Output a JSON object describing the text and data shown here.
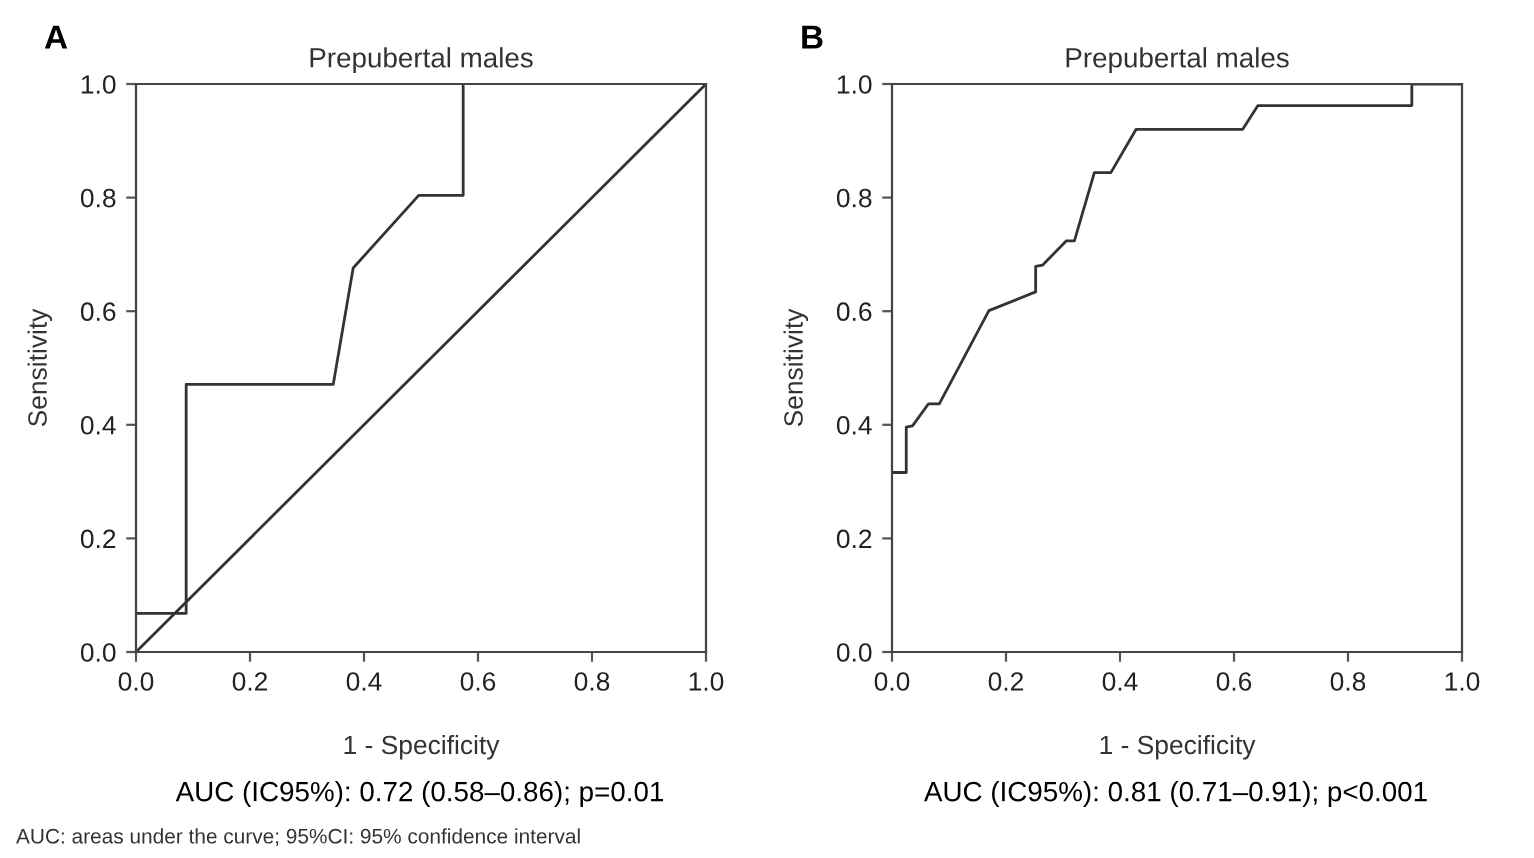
{
  "chart_data": [
    {
      "type": "line",
      "title": "Prepubertal males",
      "xlabel": "1 - Specificity",
      "ylabel": "Sensitivity",
      "annotations": [
        "A",
        "AUC (IC95%): 0.72 (0.58–0.86); p=0.01",
        "AUC: areas under the curve; 95%CI: 95% confidence interval"
      ],
      "series": [
        {
          "color": "#333333",
          "x": [
            0,
            0.088,
            0.088,
            0.346,
            0.381,
            0.496,
            0.574,
            0.574
          ],
          "values": [
            0.068,
            0.068,
            0.471,
            0.471,
            0.676,
            0.804,
            0.804,
            1.0
          ]
        },
        {
          "color": "#333333",
          "x": [
            0,
            1
          ],
          "values": [
            0,
            1
          ]
        }
      ],
      "xlim": [
        0,
        1
      ],
      "ylim": [
        0,
        1
      ],
      "xticks": [
        {
          "value": 0,
          "label": "0.0"
        },
        {
          "value": 0.2,
          "label": "0.2"
        },
        {
          "value": 0.4,
          "label": "0.4"
        },
        {
          "value": 0.6,
          "label": "0.6"
        },
        {
          "value": 0.8,
          "label": "0.8"
        },
        {
          "value": 1,
          "label": "1.0"
        }
      ],
      "yticks": [
        {
          "value": 0,
          "label": "0.0"
        },
        {
          "value": 0.2,
          "label": "0.2"
        },
        {
          "value": 0.4,
          "label": "0.4"
        },
        {
          "value": 0.6,
          "label": "0.6"
        },
        {
          "value": 0.8,
          "label": "0.8"
        },
        {
          "value": 1,
          "label": "1.0"
        }
      ],
      "grid": false,
      "marker": "none",
      "line_style": "solid"
    },
    {
      "type": "line",
      "title": "Prepubertal males",
      "xlabel": "1 - Specificity",
      "ylabel": "Sensitivity",
      "annotations": [
        "B",
        "AUC (IC95%): 0.81 (0.71–0.91); p<0.001"
      ],
      "series": [
        {
          "color": "#333333",
          "x": [
            0,
            0.025,
            0.025,
            0.036,
            0.064,
            0.083,
            0.17,
            0.252,
            0.252,
            0.264,
            0.306,
            0.32,
            0.355,
            0.384,
            0.428,
            0.615,
            0.642,
            0.912,
            0.912,
            1.0
          ],
          "values": [
            0.316,
            0.316,
            0.396,
            0.398,
            0.437,
            0.437,
            0.601,
            0.634,
            0.679,
            0.681,
            0.724,
            0.724,
            0.844,
            0.844,
            0.92,
            0.92,
            0.962,
            0.962,
            1.0,
            1.0
          ]
        }
      ],
      "xlim": [
        0,
        1
      ],
      "ylim": [
        0,
        1
      ],
      "xticks": [
        {
          "value": 0,
          "label": "0.0"
        },
        {
          "value": 0.2,
          "label": "0.2"
        },
        {
          "value": 0.4,
          "label": "0.4"
        },
        {
          "value": 0.6,
          "label": "0.6"
        },
        {
          "value": 0.8,
          "label": "0.8"
        },
        {
          "value": 1,
          "label": "1.0"
        }
      ],
      "yticks": [
        {
          "value": 0,
          "label": "0.0"
        },
        {
          "value": 0.2,
          "label": "0.2"
        },
        {
          "value": 0.4,
          "label": "0.4"
        },
        {
          "value": 0.6,
          "label": "0.6"
        },
        {
          "value": 0.8,
          "label": "0.8"
        },
        {
          "value": 1,
          "label": "1.0"
        }
      ],
      "grid": false,
      "marker": "none",
      "line_style": "solid"
    }
  ]
}
